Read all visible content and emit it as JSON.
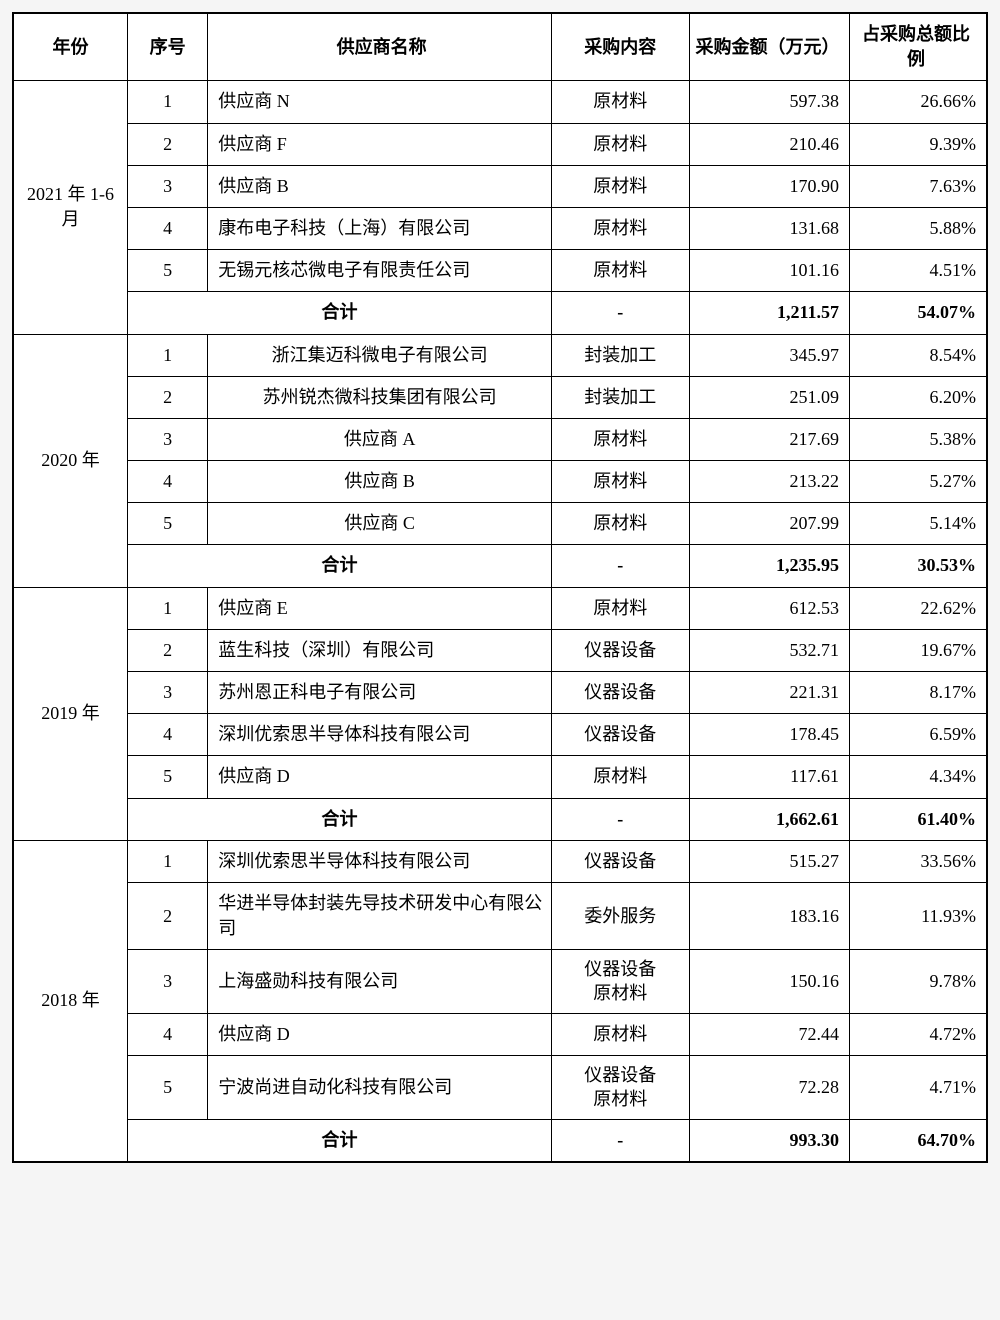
{
  "headers": {
    "year": "年份",
    "idx": "序号",
    "name": "供应商名称",
    "cat": "采购内容",
    "amt": "采购金额（万元）",
    "pct": "占采购总额比例"
  },
  "total_label": "合计",
  "dash": "-",
  "groups": [
    {
      "year": "2021 年 1-6 月",
      "name_align": "left",
      "rows": [
        {
          "idx": "1",
          "name": "供应商 N",
          "cat": "原材料",
          "amt": "597.38",
          "pct": "26.66%"
        },
        {
          "idx": "2",
          "name": "供应商 F",
          "cat": "原材料",
          "amt": "210.46",
          "pct": "9.39%"
        },
        {
          "idx": "3",
          "name": "供应商 B",
          "cat": "原材料",
          "amt": "170.90",
          "pct": "7.63%"
        },
        {
          "idx": "4",
          "name": "康布电子科技（上海）有限公司",
          "cat": "原材料",
          "amt": "131.68",
          "pct": "5.88%"
        },
        {
          "idx": "5",
          "name": "无锡元核芯微电子有限责任公司",
          "cat": "原材料",
          "amt": "101.16",
          "pct": "4.51%"
        }
      ],
      "total": {
        "amt": "1,211.57",
        "pct": "54.07%"
      }
    },
    {
      "year": "2020 年",
      "name_align": "center",
      "rows": [
        {
          "idx": "1",
          "name": "浙江集迈科微电子有限公司",
          "cat": "封装加工",
          "amt": "345.97",
          "pct": "8.54%"
        },
        {
          "idx": "2",
          "name": "苏州锐杰微科技集团有限公司",
          "cat": "封装加工",
          "amt": "251.09",
          "pct": "6.20%"
        },
        {
          "idx": "3",
          "name": "供应商 A",
          "cat": "原材料",
          "amt": "217.69",
          "pct": "5.38%"
        },
        {
          "idx": "4",
          "name": "供应商 B",
          "cat": "原材料",
          "amt": "213.22",
          "pct": "5.27%"
        },
        {
          "idx": "5",
          "name": "供应商 C",
          "cat": "原材料",
          "amt": "207.99",
          "pct": "5.14%"
        }
      ],
      "total": {
        "amt": "1,235.95",
        "pct": "30.53%"
      }
    },
    {
      "year": "2019 年",
      "name_align": "left",
      "rows": [
        {
          "idx": "1",
          "name": "供应商 E",
          "cat": "原材料",
          "amt": "612.53",
          "pct": "22.62%"
        },
        {
          "idx": "2",
          "name": "蓝生科技（深圳）有限公司",
          "cat": "仪器设备",
          "amt": "532.71",
          "pct": "19.67%"
        },
        {
          "idx": "3",
          "name": "苏州恩正科电子有限公司",
          "cat": "仪器设备",
          "amt": "221.31",
          "pct": "8.17%"
        },
        {
          "idx": "4",
          "name": "深圳优索思半导体科技有限公司",
          "cat": "仪器设备",
          "amt": "178.45",
          "pct": "6.59%"
        },
        {
          "idx": "5",
          "name": "供应商 D",
          "cat": "原材料",
          "amt": "117.61",
          "pct": "4.34%"
        }
      ],
      "total": {
        "amt": "1,662.61",
        "pct": "61.40%"
      }
    },
    {
      "year": "2018 年",
      "name_align": "left",
      "rows": [
        {
          "idx": "1",
          "name": "深圳优索思半导体科技有限公司",
          "cat": "仪器设备",
          "amt": "515.27",
          "pct": "33.56%"
        },
        {
          "idx": "2",
          "name": "华进半导体封装先导技术研发中心有限公司",
          "cat": "委外服务",
          "amt": "183.16",
          "pct": "11.93%"
        },
        {
          "idx": "3",
          "name": "上海盛勋科技有限公司",
          "cat": "仪器设备原材料",
          "cat_multi": true,
          "amt": "150.16",
          "pct": "9.78%"
        },
        {
          "idx": "4",
          "name": "供应商 D",
          "cat": "原材料",
          "amt": "72.44",
          "pct": "4.72%"
        },
        {
          "idx": "5",
          "name": "宁波尚进自动化科技有限公司",
          "cat": "仪器设备原材料",
          "cat_multi": true,
          "amt": "72.28",
          "pct": "4.71%"
        }
      ],
      "total": {
        "amt": "993.30",
        "pct": "64.70%"
      }
    }
  ]
}
